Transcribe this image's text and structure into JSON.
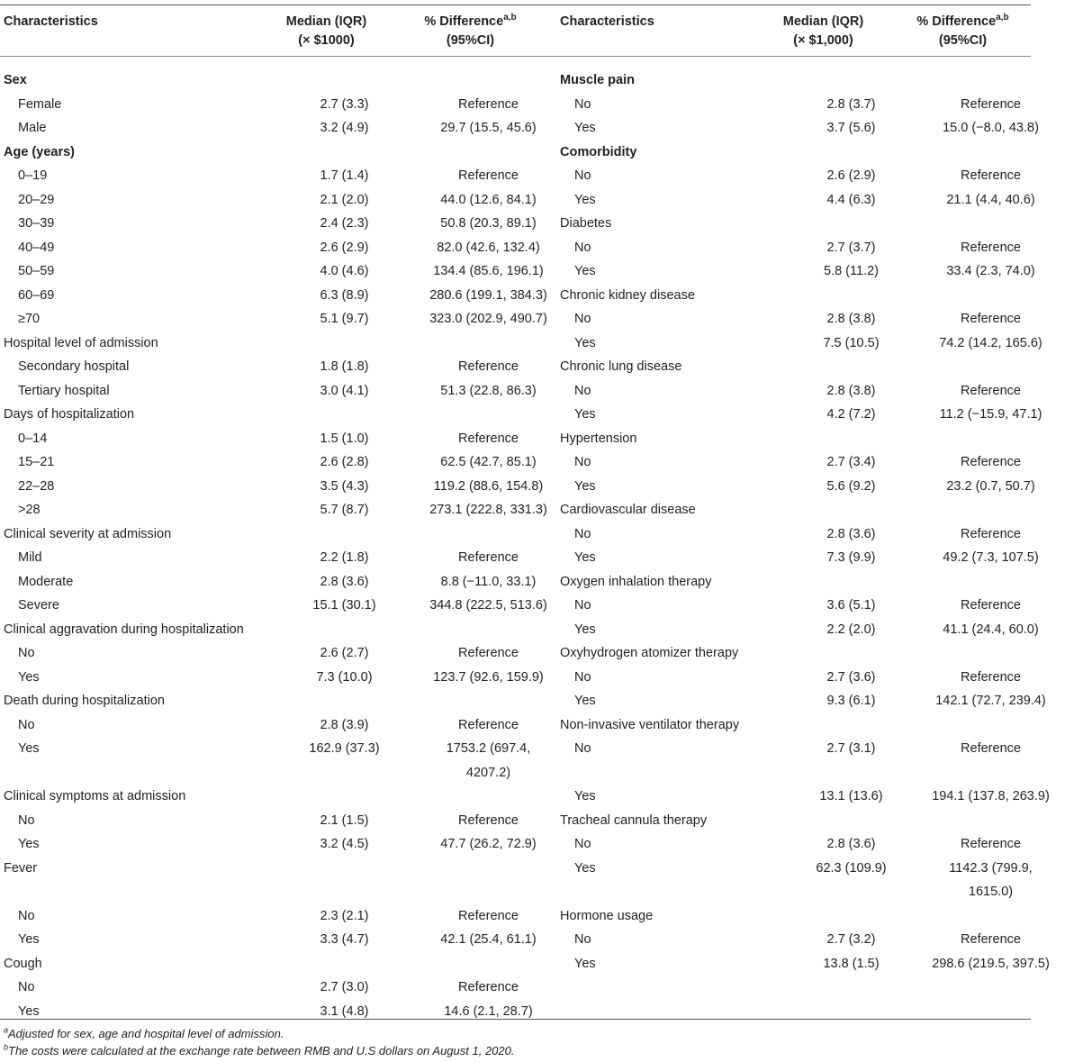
{
  "headers": {
    "left": {
      "c1": "Characteristics",
      "c2a": "Median (IQR)",
      "c2b": "(× $1000)",
      "c3a": "% Difference",
      "c3sup": "a,b",
      "c3b": "(95%CI)"
    },
    "right": {
      "c1": "Characteristics",
      "c2a": "Median (IQR)",
      "c2b": "(× $1,000)",
      "c3a": "% Difference",
      "c3sup": "a,b",
      "c3b": "(95%CI)"
    }
  },
  "left_rows": [
    {
      "label": "Sex",
      "median": "",
      "diff": "",
      "type": "group"
    },
    {
      "label": "Female",
      "median": "2.7 (3.3)",
      "diff": "Reference",
      "type": "item"
    },
    {
      "label": "Male",
      "median": "3.2 (4.9)",
      "diff": "29.7 (15.5, 45.6)",
      "type": "item"
    },
    {
      "label": "Age (years)",
      "median": "",
      "diff": "",
      "type": "group"
    },
    {
      "label": "0–19",
      "median": "1.7 (1.4)",
      "diff": "Reference",
      "type": "item"
    },
    {
      "label": "20–29",
      "median": "2.1 (2.0)",
      "diff": "44.0 (12.6, 84.1)",
      "type": "item"
    },
    {
      "label": "30–39",
      "median": "2.4 (2.3)",
      "diff": "50.8 (20.3, 89.1)",
      "type": "item"
    },
    {
      "label": "40–49",
      "median": "2.6 (2.9)",
      "diff": "82.0 (42.6, 132.4)",
      "type": "item"
    },
    {
      "label": "50–59",
      "median": "4.0 (4.6)",
      "diff": "134.4 (85.6, 196.1)",
      "type": "item"
    },
    {
      "label": "60–69",
      "median": "6.3 (8.9)",
      "diff": "280.6 (199.1, 384.3)",
      "type": "item"
    },
    {
      "label": "≥70",
      "median": "5.1 (9.7)",
      "diff": "323.0 (202.9, 490.7)",
      "type": "item"
    },
    {
      "label": "Hospital level of admission",
      "median": "",
      "diff": "",
      "type": "sub"
    },
    {
      "label": "Secondary hospital",
      "median": "1.8 (1.8)",
      "diff": "Reference",
      "type": "item"
    },
    {
      "label": "Tertiary hospital",
      "median": "3.0 (4.1)",
      "diff": "51.3 (22.8, 86.3)",
      "type": "item"
    },
    {
      "label": "Days of hospitalization",
      "median": "",
      "diff": "",
      "type": "sub"
    },
    {
      "label": "0–14",
      "median": "1.5 (1.0)",
      "diff": "Reference",
      "type": "item"
    },
    {
      "label": "15–21",
      "median": "2.6 (2.8)",
      "diff": "62.5 (42.7, 85.1)",
      "type": "item"
    },
    {
      "label": "22–28",
      "median": "3.5 (4.3)",
      "diff": "119.2 (88.6, 154.8)",
      "type": "item"
    },
    {
      "label": ">28",
      "median": "5.7 (8.7)",
      "diff": "273.1 (222.8, 331.3)",
      "type": "item"
    },
    {
      "label": "Clinical severity at admission",
      "median": "",
      "diff": "",
      "type": "sub"
    },
    {
      "label": "Mild",
      "median": "2.2 (1.8)",
      "diff": "Reference",
      "type": "item"
    },
    {
      "label": "Moderate",
      "median": "2.8 (3.6)",
      "diff": "8.8 (−11.0, 33.1)",
      "type": "item"
    },
    {
      "label": "Severe",
      "median": "15.1 (30.1)",
      "diff": "344.8 (222.5, 513.6)",
      "type": "item"
    },
    {
      "label": "Clinical aggravation during hospitalization",
      "median": "",
      "diff": "",
      "type": "sub"
    },
    {
      "label": "No",
      "median": "2.6 (2.7)",
      "diff": "Reference",
      "type": "item"
    },
    {
      "label": "Yes",
      "median": "7.3 (10.0)",
      "diff": "123.7 (92.6, 159.9)",
      "type": "item"
    },
    {
      "label": "Death during hospitalization",
      "median": "",
      "diff": "",
      "type": "sub"
    },
    {
      "label": "No",
      "median": "2.8 (3.9)",
      "diff": "Reference",
      "type": "item"
    },
    {
      "label": "Yes",
      "median": "162.9 (37.3)",
      "diff": "1753.2 (697.4,",
      "diff2": "4207.2)",
      "type": "item-tall"
    },
    {
      "label": "Clinical symptoms at admission",
      "median": "",
      "diff": "",
      "type": "sub"
    },
    {
      "label": "No",
      "median": "2.1 (1.5)",
      "diff": "Reference",
      "type": "item"
    },
    {
      "label": "Yes",
      "median": "3.2 (4.5)",
      "diff": "47.7 (26.2, 72.9)",
      "type": "item"
    },
    {
      "label": "Fever",
      "median": "",
      "diff": "",
      "type": "sub-tall"
    },
    {
      "label": "No",
      "median": "2.3 (2.1)",
      "diff": "Reference",
      "type": "item"
    },
    {
      "label": "Yes",
      "median": "3.3 (4.7)",
      "diff": "42.1 (25.4, 61.1)",
      "type": "item"
    },
    {
      "label": "Cough",
      "median": "",
      "diff": "",
      "type": "sub"
    },
    {
      "label": "No",
      "median": "2.7 (3.0)",
      "diff": "Reference",
      "type": "item"
    },
    {
      "label": "Yes",
      "median": "3.1 (4.8)",
      "diff": "14.6 (2.1, 28.7)",
      "type": "item"
    }
  ],
  "right_rows": [
    {
      "label": "Muscle pain",
      "median": "",
      "diff": "",
      "type": "group"
    },
    {
      "label": "No",
      "median": "2.8 (3.7)",
      "diff": "Reference",
      "type": "item"
    },
    {
      "label": "Yes",
      "median": "3.7 (5.6)",
      "diff": "15.0 (−8.0, 43.8)",
      "type": "item"
    },
    {
      "label": "Comorbidity",
      "median": "",
      "diff": "",
      "type": "group"
    },
    {
      "label": "No",
      "median": "2.6 (2.9)",
      "diff": "Reference",
      "type": "item"
    },
    {
      "label": "Yes",
      "median": "4.4 (6.3)",
      "diff": "21.1 (4.4, 40.6)",
      "type": "item"
    },
    {
      "label": "Diabetes",
      "median": "",
      "diff": "",
      "type": "sub"
    },
    {
      "label": "No",
      "median": "2.7 (3.7)",
      "diff": "Reference",
      "type": "item"
    },
    {
      "label": "Yes",
      "median": "5.8 (11.2)",
      "diff": "33.4 (2.3, 74.0)",
      "type": "item"
    },
    {
      "label": "Chronic kidney disease",
      "median": "",
      "diff": "",
      "type": "sub"
    },
    {
      "label": "No",
      "median": "2.8 (3.8)",
      "diff": "Reference",
      "type": "item"
    },
    {
      "label": "Yes",
      "median": "7.5 (10.5)",
      "diff": "74.2 (14.2, 165.6)",
      "type": "item"
    },
    {
      "label": "Chronic lung disease",
      "median": "",
      "diff": "",
      "type": "sub"
    },
    {
      "label": "No",
      "median": "2.8 (3.8)",
      "diff": "Reference",
      "type": "item"
    },
    {
      "label": "Yes",
      "median": "4.2 (7.2)",
      "diff": "11.2 (−15.9, 47.1)",
      "type": "item"
    },
    {
      "label": "Hypertension",
      "median": "",
      "diff": "",
      "type": "sub"
    },
    {
      "label": "No",
      "median": "2.7 (3.4)",
      "diff": "Reference",
      "type": "item"
    },
    {
      "label": "Yes",
      "median": "5.6 (9.2)",
      "diff": "23.2 (0.7, 50.7)",
      "type": "item"
    },
    {
      "label": "Cardiovascular disease",
      "median": "",
      "diff": "",
      "type": "sub"
    },
    {
      "label": "No",
      "median": "2.8 (3.6)",
      "diff": "Reference",
      "type": "item"
    },
    {
      "label": "Yes",
      "median": "7.3 (9.9)",
      "diff": "49.2 (7.3, 107.5)",
      "type": "item"
    },
    {
      "label": "Oxygen inhalation therapy",
      "median": "",
      "diff": "",
      "type": "sub"
    },
    {
      "label": "No",
      "median": "3.6 (5.1)",
      "diff": "Reference",
      "type": "item"
    },
    {
      "label": "Yes",
      "median": "2.2 (2.0)",
      "diff": "41.1 (24.4, 60.0)",
      "type": "item"
    },
    {
      "label": "Oxyhydrogen atomizer therapy",
      "median": "",
      "diff": "",
      "type": "sub"
    },
    {
      "label": "No",
      "median": "2.7 (3.6)",
      "diff": "Reference",
      "type": "item"
    },
    {
      "label": "Yes",
      "median": "9.3 (6.1)",
      "diff": "142.1 (72.7, 239.4)",
      "type": "item"
    },
    {
      "label": "Non-invasive ventilator therapy",
      "median": "",
      "diff": "",
      "type": "sub"
    },
    {
      "label": "No",
      "median": "2.7 (3.1)",
      "diff": "Reference",
      "type": "item-tall"
    },
    {
      "label": "Yes",
      "median": "13.1 (13.6)",
      "diff": "194.1 (137.8, 263.9)",
      "type": "item"
    },
    {
      "label": "Tracheal cannula therapy",
      "median": "",
      "diff": "",
      "type": "sub"
    },
    {
      "label": "No",
      "median": "2.8 (3.6)",
      "diff": "Reference",
      "type": "item"
    },
    {
      "label": "Yes",
      "median": "62.3 (109.9)",
      "diff": "1142.3 (799.9,",
      "diff2": "1615.0)",
      "type": "item-tall"
    },
    {
      "label": "Hormone usage",
      "median": "",
      "diff": "",
      "type": "sub"
    },
    {
      "label": "No",
      "median": "2.7 (3.2)",
      "diff": "Reference",
      "type": "item"
    },
    {
      "label": "Yes",
      "median": "13.8 (1.5)",
      "diff": "298.6 (219.5, 397.5)",
      "type": "item"
    }
  ],
  "footnotes": [
    {
      "sup": "a",
      "text": "Adjusted for sex, age and hospital level of admission."
    },
    {
      "sup": "b",
      "text": "The costs were calculated at the exchange rate between RMB and U.S dollars on August 1, 2020."
    }
  ]
}
